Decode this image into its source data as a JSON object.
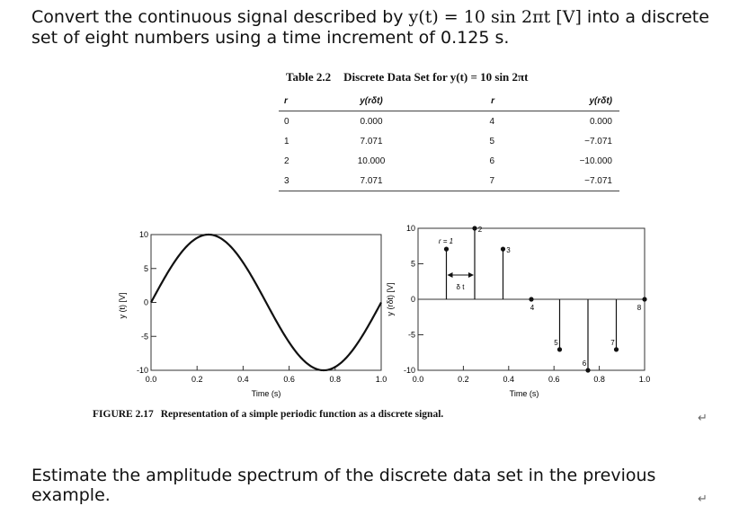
{
  "problem": {
    "part1": "Convert the continuous signal described by ",
    "math": "y(t) = 10 sin 2πt [V]",
    "part2": " into a discrete set of eight numbers using a time increment of 0.125 s."
  },
  "table": {
    "label": "Table 2.2",
    "title": "Discrete Data Set for y(t) = 10 sin 2πt",
    "headers": [
      "r",
      "y(rδt)",
      "r",
      "y(rδt)"
    ],
    "rows": [
      [
        "0",
        "0.000",
        "4",
        "0.000"
      ],
      [
        "1",
        "7.071",
        "5",
        "−7.071"
      ],
      [
        "2",
        "10.000",
        "6",
        "−10.000"
      ],
      [
        "3",
        "7.071",
        "7",
        "−7.071"
      ]
    ]
  },
  "figure": {
    "label": "FIGURE 2.17",
    "title": "Representation of a simple periodic function as a discrete signal.",
    "left_ylabel": "y (t) [V]",
    "right_ylabel": "y (rδt) [V]",
    "xlabel": "Time (s)",
    "r1_label": "r = 1",
    "delta_label": "δ t",
    "xticks_left": [
      "0.0",
      "0.2",
      "0.4",
      "0.6",
      "0.8",
      "1.0"
    ],
    "xticks_right": [
      "0.0",
      "0.2",
      "0.4",
      "0.6",
      "0.8",
      "1.0"
    ],
    "yticks": [
      "10",
      "5",
      "0",
      "-5",
      "-10"
    ]
  },
  "chart_data": [
    {
      "type": "line",
      "xlabel": "Time (s)",
      "ylabel": "y (t) [V]",
      "xlim": [
        0,
        1
      ],
      "ylim": [
        -10,
        10
      ],
      "function": "10 sin 2πt",
      "x": [
        0,
        0.125,
        0.25,
        0.375,
        0.5,
        0.625,
        0.75,
        0.875,
        1.0
      ],
      "y": [
        0,
        7.071,
        10,
        7.071,
        0,
        -7.071,
        -10,
        -7.071,
        0
      ]
    },
    {
      "type": "scatter",
      "xlabel": "Time (s)",
      "ylabel": "y (rδt) [V]",
      "xlim": [
        0,
        1
      ],
      "ylim": [
        -10,
        10
      ],
      "r": [
        1,
        2,
        3,
        4,
        5,
        6,
        7,
        8
      ],
      "x": [
        0.125,
        0.25,
        0.375,
        0.5,
        0.625,
        0.75,
        0.875,
        1.0
      ],
      "y": [
        7.071,
        10,
        7.071,
        0,
        -7.071,
        -10,
        -7.071,
        0
      ]
    }
  ],
  "question": "Estimate the amplitude spectrum of the discrete data set in the previous example.",
  "return_symbol": "↵"
}
